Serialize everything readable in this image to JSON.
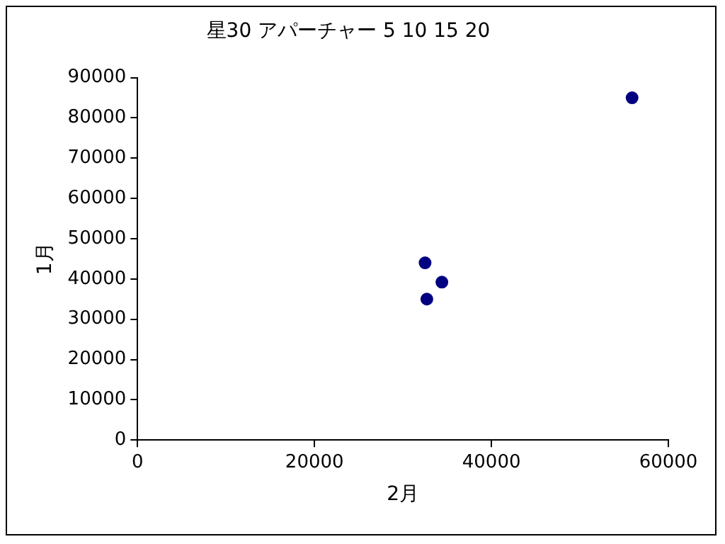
{
  "chart_data": {
    "type": "scatter",
    "title": "星30 アパーチャー 5 10 15 20",
    "xlabel": "2月",
    "ylabel": "1月",
    "x": [
      55900,
      32500,
      34400,
      32700
    ],
    "values": [
      85000,
      44000,
      39200,
      35000
    ],
    "color": "#000080",
    "marker": "circle",
    "xlim": [
      0,
      60000
    ],
    "xticks": [
      0,
      20000,
      40000,
      60000
    ],
    "ylim": [
      0,
      90000
    ],
    "yticks": [
      0,
      10000,
      20000,
      30000,
      40000,
      50000,
      60000,
      70000,
      80000,
      90000
    ],
    "grid": false,
    "legend": false
  }
}
